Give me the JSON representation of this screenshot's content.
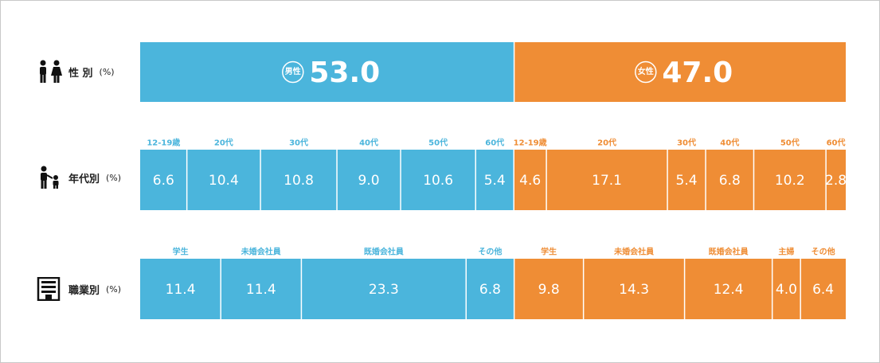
{
  "colors": {
    "male": "#4bb5dc",
    "female": "#ef8d35",
    "divider": "#ffffff"
  },
  "rows": {
    "gender": {
      "label": "性 別",
      "unit": "(%)",
      "icon": "male-female-icon"
    },
    "age": {
      "label": "年代別",
      "unit": "(%)",
      "icon": "parent-child-icon"
    },
    "occupation": {
      "label": "職業別",
      "unit": "(%)",
      "icon": "building-icon"
    }
  },
  "chart_data": [
    {
      "type": "bar",
      "orientation": "horizontal-stacked",
      "categories": [
        "男性",
        "女性"
      ],
      "values": [
        53.0,
        47.0
      ],
      "series_colors": [
        "#4bb5dc",
        "#ef8d35"
      ]
    },
    {
      "type": "bar",
      "orientation": "horizontal-stacked",
      "series": [
        {
          "group": "male",
          "categories": [
            "12-19歳",
            "20代",
            "30代",
            "40代",
            "50代",
            "60代"
          ],
          "values": [
            6.6,
            10.4,
            10.8,
            9.0,
            10.6,
            5.4
          ]
        },
        {
          "group": "female",
          "categories": [
            "12-19歳",
            "20代",
            "30代",
            "40代",
            "50代",
            "60代"
          ],
          "values": [
            4.6,
            17.1,
            5.4,
            6.8,
            10.2,
            2.8
          ]
        }
      ]
    },
    {
      "type": "bar",
      "orientation": "horizontal-stacked",
      "series": [
        {
          "group": "male",
          "categories": [
            "学生",
            "未婚会社員",
            "既婚会社員",
            "その他"
          ],
          "values": [
            11.4,
            11.4,
            23.3,
            6.8
          ]
        },
        {
          "group": "female",
          "categories": [
            "学生",
            "未婚会社員",
            "既婚会社員",
            "主婦",
            "その他"
          ],
          "values": [
            9.8,
            14.3,
            12.4,
            4.0,
            6.4
          ]
        }
      ]
    }
  ]
}
